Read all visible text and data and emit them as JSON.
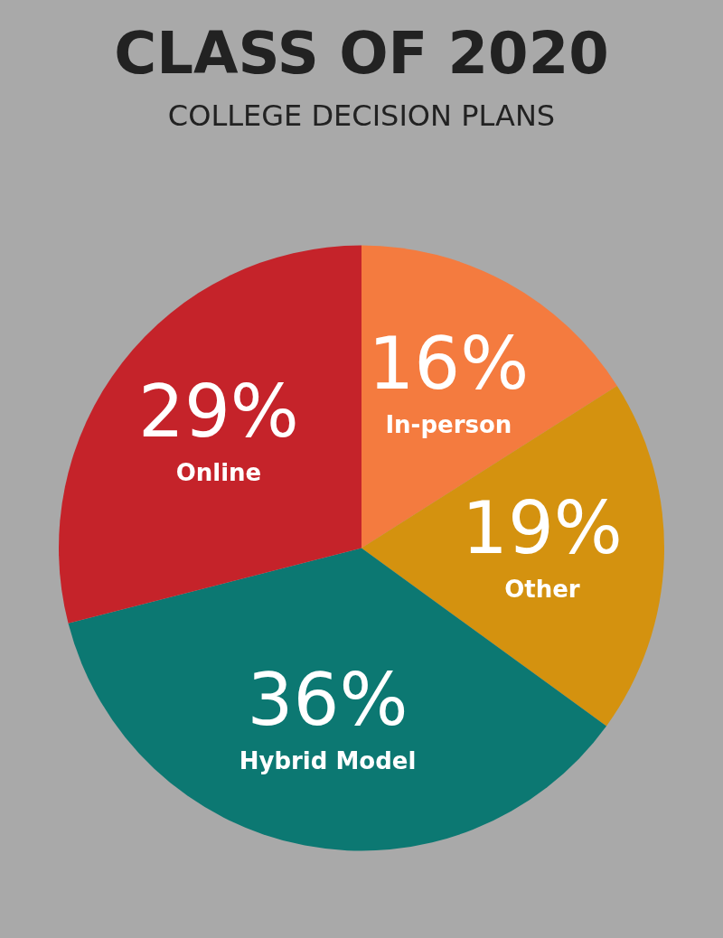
{
  "chart_data": {
    "type": "pie",
    "title": "CLASS OF 2020",
    "subtitle": "COLLEGE DECISION PLANS",
    "categories": [
      "In-person",
      "Other",
      "Hybrid Model",
      "Online"
    ],
    "values": [
      16,
      19,
      36,
      29
    ],
    "colors": [
      "#f47b3f",
      "#d4920f",
      "#0c7872",
      "#c5232a"
    ],
    "value_labels": [
      "16%",
      "19%",
      "36%",
      "29%"
    ],
    "legend": false
  }
}
